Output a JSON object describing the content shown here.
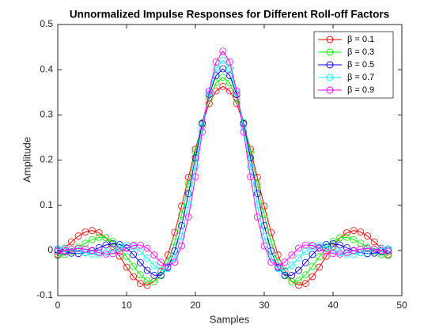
{
  "chart_data": {
    "type": "line",
    "title": "Unnormalized Impulse Responses for Different Roll-off Factors",
    "x_label": "Samples",
    "y_label": "Amplitude",
    "xlim": [
      0,
      50
    ],
    "xticks": [
      0,
      10,
      20,
      30,
      40,
      50
    ],
    "ylim": [
      -0.1,
      0.5
    ],
    "yticks": [
      -0.1,
      0,
      0.1,
      0.2,
      0.3,
      0.4,
      0.5
    ],
    "legend_position": "upper right",
    "marker": "circle",
    "x": [
      0,
      1,
      2,
      3,
      4,
      5,
      6,
      7,
      8,
      9,
      10,
      11,
      12,
      13,
      14,
      15,
      16,
      17,
      18,
      19,
      20,
      21,
      22,
      23,
      24,
      25,
      26,
      27,
      28,
      29,
      30,
      31,
      32,
      33,
      34,
      35,
      36,
      37,
      38,
      39,
      40,
      41,
      42,
      43,
      44,
      45,
      46,
      47,
      48
    ],
    "series": [
      {
        "name": "β = 0.1",
        "color": "#ff0000",
        "values": [
          -0.009,
          0.005,
          0.019,
          0.032,
          0.041,
          0.044,
          0.039,
          0.028,
          0.009,
          -0.013,
          -0.037,
          -0.058,
          -0.073,
          -0.077,
          -0.069,
          -0.046,
          -0.01,
          0.04,
          0.098,
          0.162,
          0.224,
          0.28,
          0.325,
          0.353,
          0.363,
          0.353,
          0.325,
          0.28,
          0.224,
          0.162,
          0.098,
          0.04,
          -0.01,
          -0.046,
          -0.069,
          -0.077,
          -0.073,
          -0.058,
          -0.037,
          -0.013,
          0.009,
          0.028,
          0.039,
          0.044,
          0.041,
          0.032,
          0.019,
          0.005,
          -0.009
        ]
      },
      {
        "name": "β = 0.3",
        "color": "#00ff00",
        "values": [
          -0.012,
          -0.009,
          -0.002,
          0.007,
          0.016,
          0.024,
          0.029,
          0.028,
          0.02,
          0.006,
          -0.014,
          -0.035,
          -0.054,
          -0.067,
          -0.069,
          -0.056,
          -0.027,
          0.019,
          0.079,
          0.147,
          0.218,
          0.283,
          0.336,
          0.371,
          0.383,
          0.371,
          0.336,
          0.283,
          0.218,
          0.147,
          0.079,
          0.019,
          -0.027,
          -0.056,
          -0.069,
          -0.067,
          -0.054,
          -0.035,
          -0.014,
          0.006,
          0.02,
          0.028,
          0.029,
          0.024,
          0.016,
          0.007,
          -0.002,
          -0.009,
          -0.012
        ]
      },
      {
        "name": "β = 0.5",
        "color": "#0000ff",
        "values": [
          0.001,
          -0.003,
          -0.006,
          -0.007,
          -0.005,
          -0.001,
          0.006,
          0.012,
          0.015,
          0.013,
          0.006,
          -0.009,
          -0.027,
          -0.044,
          -0.055,
          -0.055,
          -0.038,
          -0.001,
          0.055,
          0.126,
          0.205,
          0.281,
          0.345,
          0.387,
          0.402,
          0.387,
          0.345,
          0.281,
          0.205,
          0.126,
          0.055,
          -0.001,
          -0.038,
          -0.055,
          -0.055,
          -0.044,
          -0.027,
          -0.009,
          0.006,
          0.013,
          0.015,
          0.012,
          0.006,
          -0.001,
          -0.005,
          -0.007,
          -0.006,
          -0.003,
          0.001
        ]
      },
      {
        "name": "β = 0.7",
        "color": "#00ffff",
        "values": [
          0.004,
          0.004,
          0.003,
          -0.001,
          -0.005,
          -0.008,
          -0.008,
          -0.005,
          0.001,
          0.008,
          0.011,
          0.008,
          -0.002,
          -0.017,
          -0.033,
          -0.044,
          -0.04,
          -0.016,
          0.031,
          0.101,
          0.186,
          0.274,
          0.35,
          0.403,
          0.421,
          0.403,
          0.35,
          0.274,
          0.186,
          0.101,
          0.031,
          -0.016,
          -0.04,
          -0.044,
          -0.033,
          -0.017,
          -0.002,
          0.008,
          0.011,
          0.008,
          0.001,
          -0.005,
          -0.008,
          -0.008,
          -0.005,
          -0.001,
          0.003,
          0.004,
          0.004
        ]
      },
      {
        "name": "β = 0.9",
        "color": "#ff00ff",
        "values": [
          -0.002,
          0,
          0.003,
          0.004,
          0.003,
          0,
          -0.005,
          -0.008,
          -0.007,
          -0.003,
          0.005,
          0.011,
          0.012,
          0.005,
          -0.01,
          -0.026,
          -0.035,
          -0.026,
          0.01,
          0.074,
          0.163,
          0.262,
          0.353,
          0.417,
          0.441,
          0.417,
          0.353,
          0.262,
          0.163,
          0.074,
          0.01,
          -0.026,
          -0.035,
          -0.026,
          -0.01,
          0.005,
          0.012,
          0.011,
          0.005,
          -0.003,
          -0.007,
          -0.008,
          -0.005,
          0,
          0.003,
          0.004,
          0.003,
          0,
          -0.002
        ]
      }
    ]
  }
}
